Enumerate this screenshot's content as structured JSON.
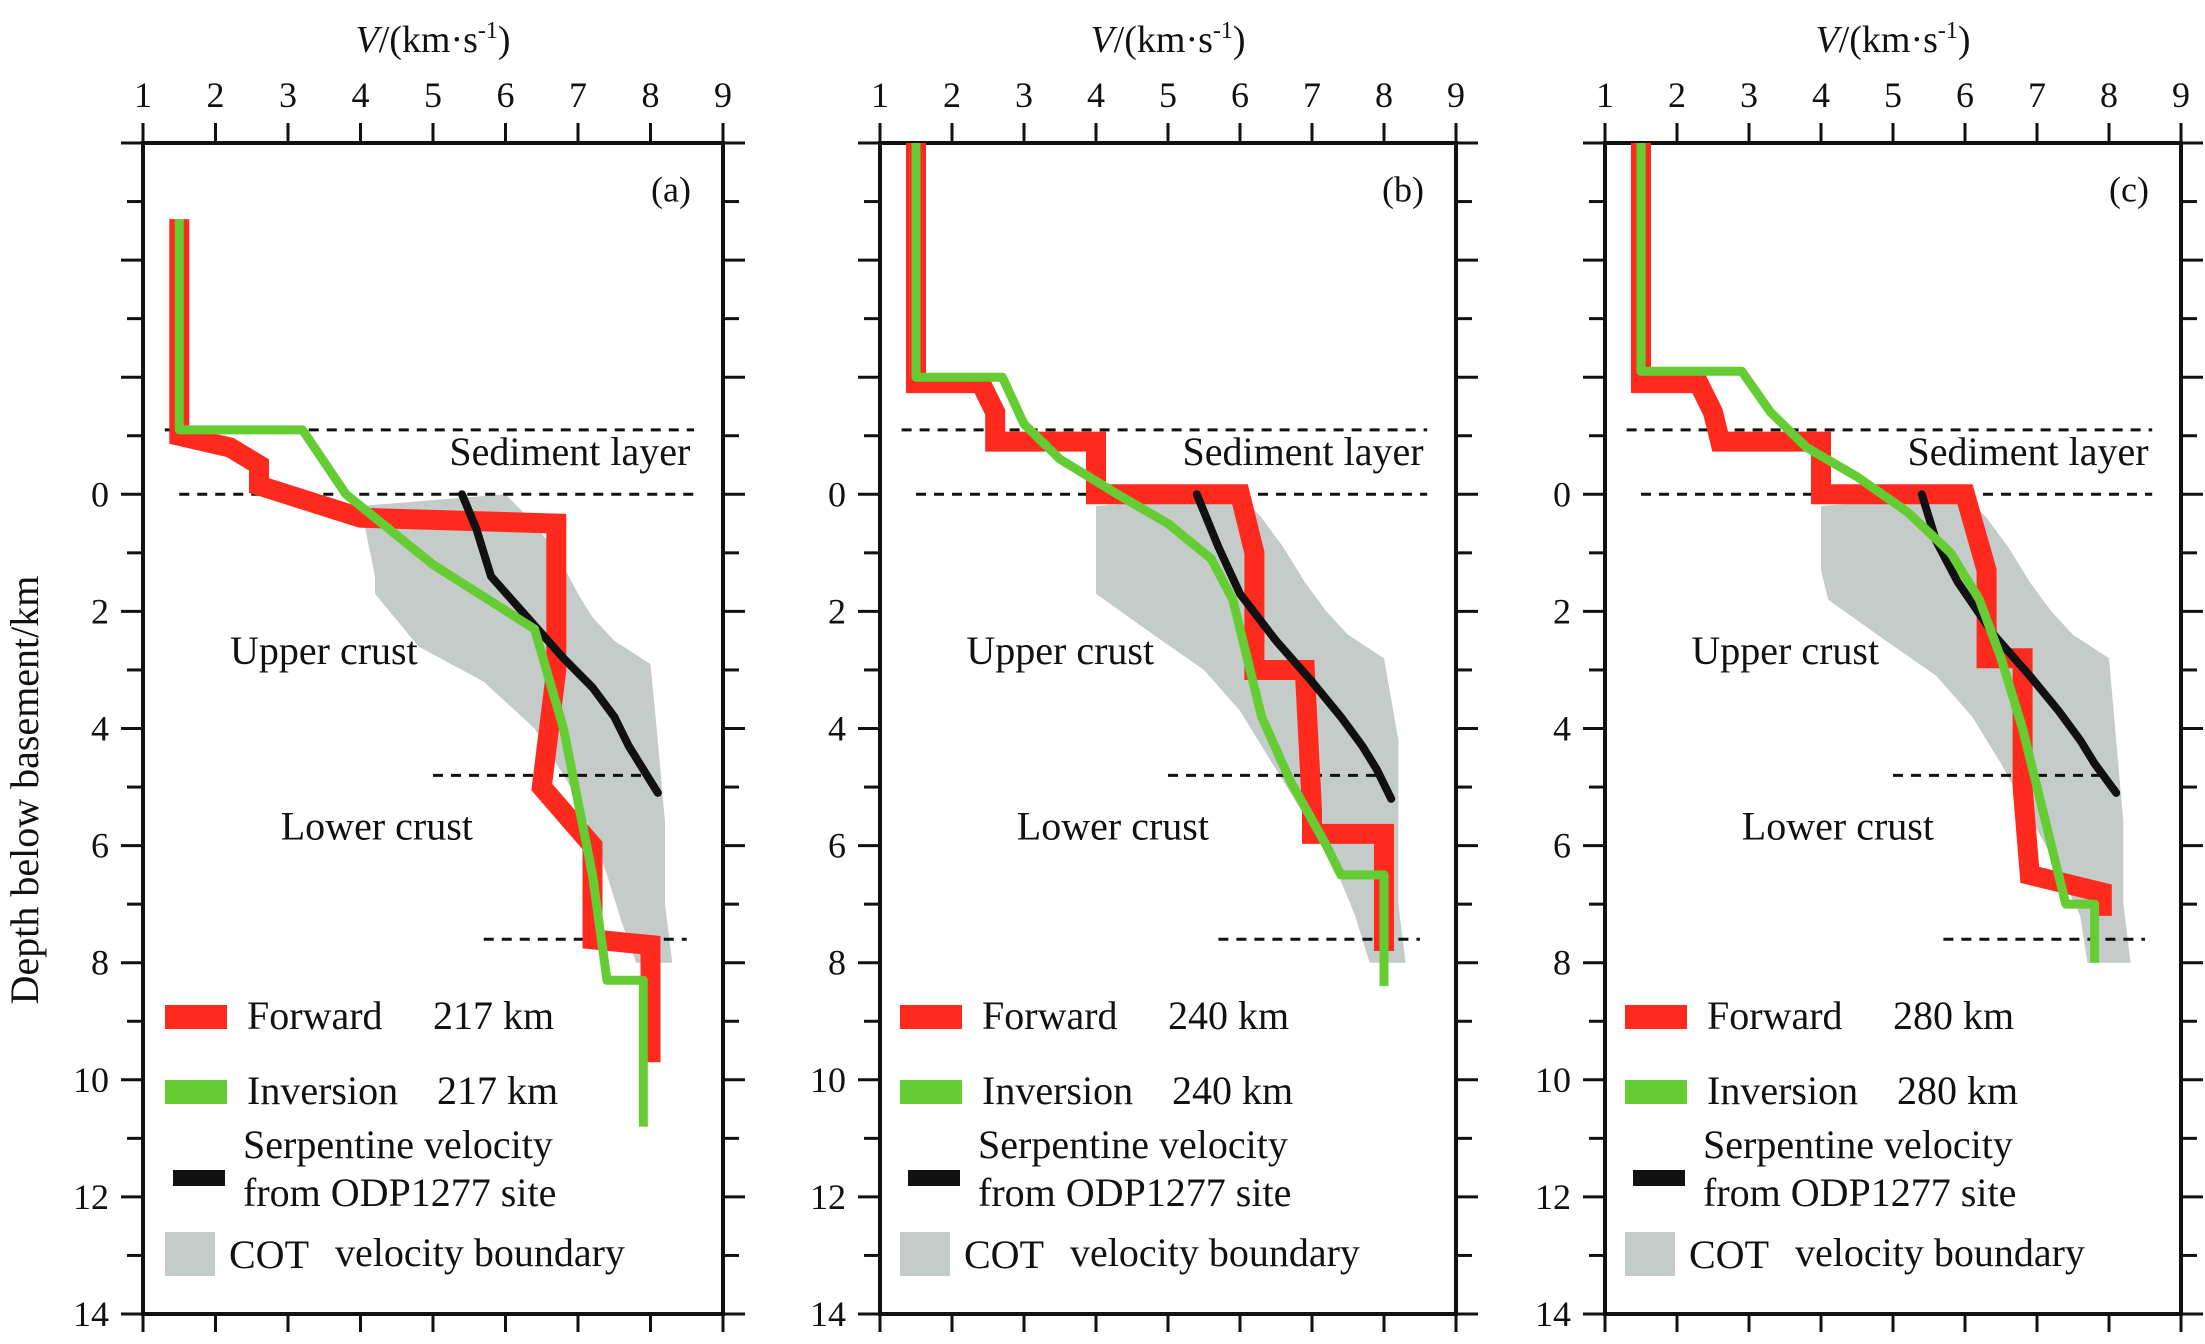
{
  "figure": {
    "y_axis_title": "Depth below basement/km",
    "colors": {
      "forward": "#ff2a1e",
      "inversion": "#66cc33",
      "serpentine": "#111111",
      "cot": "#c4cbc9",
      "axis": "#111111"
    }
  },
  "chart_data": [
    {
      "type": "line",
      "panel": "(a)",
      "x_axis_title": "V/(km·s-1)",
      "x_axis_title_parts": {
        "var": "V",
        "unit_open": "/(km·s",
        "exp": "-1",
        "unit_close": ")"
      },
      "xlabel": "V/(km·s-1)",
      "ylabel": "Depth below basement/km",
      "xlim": [
        1,
        9
      ],
      "ylim": [
        -6,
        14
      ],
      "x_ticks": [
        "1",
        "2",
        "3",
        "4",
        "5",
        "6",
        "7",
        "8",
        "9"
      ],
      "y_ticks": [
        "0",
        "2",
        "4",
        "6",
        "8",
        "10",
        "12",
        "14"
      ],
      "layer_labels": {
        "sediment": "Sediment layer",
        "upper": "Upper crust",
        "lower": "Lower crust"
      },
      "boundaries": {
        "sediment_top": -1.1,
        "basement": 0,
        "upper_lower": 4.8,
        "moho": 7.6
      },
      "legend": {
        "forward": "Forward",
        "forward_km": "217 km",
        "inversion": "Inversion",
        "inversion_km": "217 km",
        "serpentine_1": "Serpentine velocity",
        "serpentine_2": "from ODP1277 site",
        "cot_1": "COT",
        "cot_2": "velocity boundary"
      },
      "series": [
        {
          "name": "Forward 217 km",
          "x": [
            1.5,
            1.5,
            2.2,
            2.6,
            2.6,
            4.0,
            6.7,
            6.7,
            6.5,
            7.2,
            7.2,
            8.0,
            8.0
          ],
          "y": [
            -4.7,
            -1.0,
            -0.8,
            -0.5,
            -0.15,
            0.4,
            0.5,
            3.0,
            5.0,
            6.0,
            7.6,
            7.7,
            9.7
          ]
        },
        {
          "name": "Inversion 217 km",
          "x": [
            1.5,
            1.5,
            3.2,
            3.8,
            5.0,
            6.4,
            6.8,
            7.2,
            7.4,
            7.9,
            7.9
          ],
          "y": [
            -4.7,
            -1.1,
            -1.1,
            0.0,
            1.2,
            2.3,
            4.0,
            6.5,
            8.3,
            8.3,
            10.8
          ]
        },
        {
          "name": "Serpentine velocity from ODP1277 site",
          "x": [
            5.4,
            5.6,
            5.8,
            6.3,
            6.8,
            7.2,
            7.5,
            7.7,
            8.1
          ],
          "y": [
            0.0,
            0.6,
            1.4,
            2.1,
            2.8,
            3.3,
            3.8,
            4.3,
            5.1
          ]
        }
      ],
      "cot_boundary": {
        "left": {
          "x": [
            4.0,
            4.1,
            4.2,
            4.2,
            4.8,
            5.7,
            6.4,
            6.9,
            7.2,
            7.4,
            7.6,
            7.8
          ],
          "y": [
            0.2,
            0.8,
            1.4,
            1.7,
            2.6,
            3.2,
            4.0,
            5.0,
            5.8,
            6.5,
            7.3,
            8.0
          ]
        },
        "right": {
          "x": [
            6.0,
            6.4,
            6.7,
            7.0,
            7.2,
            7.5,
            8.0,
            8.1,
            8.2,
            8.2,
            8.3
          ],
          "y": [
            0.0,
            0.5,
            1.0,
            1.7,
            2.1,
            2.5,
            2.9,
            4.2,
            5.6,
            7.0,
            8.0
          ]
        }
      }
    },
    {
      "type": "line",
      "panel": "(b)",
      "x_axis_title": "V/(km·s-1)",
      "x_axis_title_parts": {
        "var": "V",
        "unit_open": "/(km·s",
        "exp": "-1",
        "unit_close": ")"
      },
      "xlabel": "V/(km·s-1)",
      "ylabel": "Depth below basement/km",
      "xlim": [
        1,
        9
      ],
      "ylim": [
        -6,
        14
      ],
      "x_ticks": [
        "1",
        "2",
        "3",
        "4",
        "5",
        "6",
        "7",
        "8",
        "9"
      ],
      "y_ticks": [
        "0",
        "2",
        "4",
        "6",
        "8",
        "10",
        "12",
        "14"
      ],
      "layer_labels": {
        "sediment": "Sediment layer",
        "upper": "Upper crust",
        "lower": "Lower crust"
      },
      "boundaries": {
        "sediment_top": -1.1,
        "basement": 0,
        "upper_lower": 4.8,
        "moho": 7.6
      },
      "legend": {
        "forward": "Forward",
        "forward_km": "240 km",
        "inversion": "Inversion",
        "inversion_km": "240  km",
        "serpentine_1": "Serpentine velocity",
        "serpentine_2": "from ODP1277 site",
        "cot_1": "COT",
        "cot_2": "velocity boundary"
      },
      "series": [
        {
          "name": "Forward 240 km",
          "x": [
            1.5,
            1.5,
            2.4,
            2.6,
            2.6,
            4.0,
            4.0,
            6.0,
            6.2,
            6.2,
            6.9,
            7.0,
            7.0,
            8.0,
            8.0
          ],
          "y": [
            -6.0,
            -1.9,
            -1.9,
            -1.4,
            -0.9,
            -0.9,
            0.0,
            0.0,
            1.0,
            3.0,
            3.0,
            5.4,
            5.8,
            5.8,
            7.8
          ]
        },
        {
          "name": "Inversion 240 km",
          "x": [
            1.5,
            1.5,
            2.7,
            3.0,
            3.5,
            4.3,
            5.0,
            5.6,
            5.9,
            6.1,
            6.3,
            6.7,
            7.2,
            7.4,
            8.0,
            8.0
          ],
          "y": [
            -6.0,
            -2.0,
            -2.0,
            -1.2,
            -0.6,
            0.0,
            0.5,
            1.1,
            1.8,
            2.8,
            3.8,
            4.9,
            6.0,
            6.5,
            6.5,
            8.4
          ]
        },
        {
          "name": "Serpentine velocity from ODP1277 site",
          "x": [
            5.4,
            5.7,
            6.0,
            6.5,
            7.0,
            7.4,
            7.7,
            7.9,
            8.1
          ],
          "y": [
            0.0,
            0.9,
            1.7,
            2.5,
            3.2,
            3.8,
            4.3,
            4.7,
            5.2
          ]
        }
      ],
      "cot_boundary": {
        "left": {
          "x": [
            4.0,
            4.0,
            4.0,
            4.0,
            4.8,
            5.5,
            6.0,
            6.4,
            6.9,
            7.3,
            7.6,
            7.8
          ],
          "y": [
            0.2,
            0.6,
            1.2,
            1.7,
            2.4,
            3.0,
            3.7,
            4.5,
            5.5,
            6.3,
            7.2,
            8.0
          ]
        },
        "right": {
          "x": [
            6.0,
            6.3,
            6.6,
            6.9,
            7.2,
            7.5,
            8.0,
            8.2,
            8.2,
            8.2,
            8.3
          ],
          "y": [
            0.0,
            0.4,
            0.9,
            1.5,
            2.0,
            2.4,
            2.8,
            4.2,
            5.6,
            7.0,
            8.0
          ]
        }
      }
    },
    {
      "type": "line",
      "panel": "(c)",
      "x_axis_title": "V/(km·s-1)",
      "x_axis_title_parts": {
        "var": "V",
        "unit_open": "/(km·s",
        "exp": "-1",
        "unit_close": ")"
      },
      "xlabel": "V/(km·s-1)",
      "ylabel": "Depth below basement/km",
      "xlim": [
        1,
        9
      ],
      "ylim": [
        -6,
        14
      ],
      "x_ticks": [
        "1",
        "2",
        "3",
        "4",
        "5",
        "6",
        "7",
        "8",
        "9"
      ],
      "y_ticks": [
        "0",
        "2",
        "4",
        "6",
        "8",
        "10",
        "12",
        "14"
      ],
      "layer_labels": {
        "sediment": "Sediment layer",
        "upper": "Upper crust",
        "lower": "Lower crust"
      },
      "boundaries": {
        "sediment_top": -1.1,
        "basement": 0,
        "upper_lower": 4.8,
        "moho": 7.6
      },
      "legend": {
        "forward": "Forward",
        "forward_km": "280 km",
        "inversion": "Inversion",
        "inversion_km": "280 km",
        "serpentine_1": "Serpentine velocity",
        "serpentine_2": "from ODP1277 site",
        "cot_1": "COT",
        "cot_2": "velocity boundary"
      },
      "series": [
        {
          "name": "Forward 280 km",
          "x": [
            1.5,
            1.5,
            2.3,
            2.5,
            2.6,
            4.0,
            4.0,
            6.0,
            6.3,
            6.3,
            6.8,
            6.8,
            6.9,
            7.9,
            7.9
          ],
          "y": [
            -6.0,
            -1.9,
            -1.9,
            -1.4,
            -0.9,
            -0.9,
            0.0,
            0.0,
            1.3,
            2.8,
            2.8,
            5.0,
            6.5,
            6.8,
            7.2
          ]
        },
        {
          "name": "Inversion 280 km",
          "x": [
            1.5,
            1.5,
            2.9,
            3.3,
            3.8,
            4.5,
            5.2,
            5.8,
            6.2,
            6.5,
            6.8,
            7.1,
            7.4,
            7.8,
            7.8
          ],
          "y": [
            -6.0,
            -2.1,
            -2.1,
            -1.4,
            -0.8,
            -0.3,
            0.3,
            1.0,
            1.8,
            2.8,
            4.0,
            5.5,
            7.0,
            7.0,
            8.0
          ]
        },
        {
          "name": "Serpentine velocity from ODP1277 site",
          "x": [
            5.4,
            5.6,
            5.9,
            6.4,
            6.9,
            7.3,
            7.6,
            7.8,
            8.1
          ],
          "y": [
            0.0,
            0.8,
            1.5,
            2.4,
            3.1,
            3.7,
            4.2,
            4.6,
            5.1
          ]
        }
      ],
      "cot_boundary": {
        "left": {
          "x": [
            4.0,
            4.0,
            4.0,
            4.1,
            4.9,
            5.6,
            6.1,
            6.5,
            6.9,
            7.3,
            7.6,
            7.7
          ],
          "y": [
            0.2,
            0.7,
            1.3,
            1.8,
            2.5,
            3.1,
            3.8,
            4.6,
            5.5,
            6.4,
            7.2,
            8.0
          ]
        },
        "right": {
          "x": [
            6.0,
            6.3,
            6.6,
            6.9,
            7.2,
            7.5,
            8.0,
            8.1,
            8.2,
            8.2,
            8.3
          ],
          "y": [
            0.0,
            0.4,
            0.9,
            1.5,
            2.0,
            2.4,
            2.8,
            4.2,
            5.6,
            7.0,
            8.0
          ]
        }
      }
    }
  ]
}
